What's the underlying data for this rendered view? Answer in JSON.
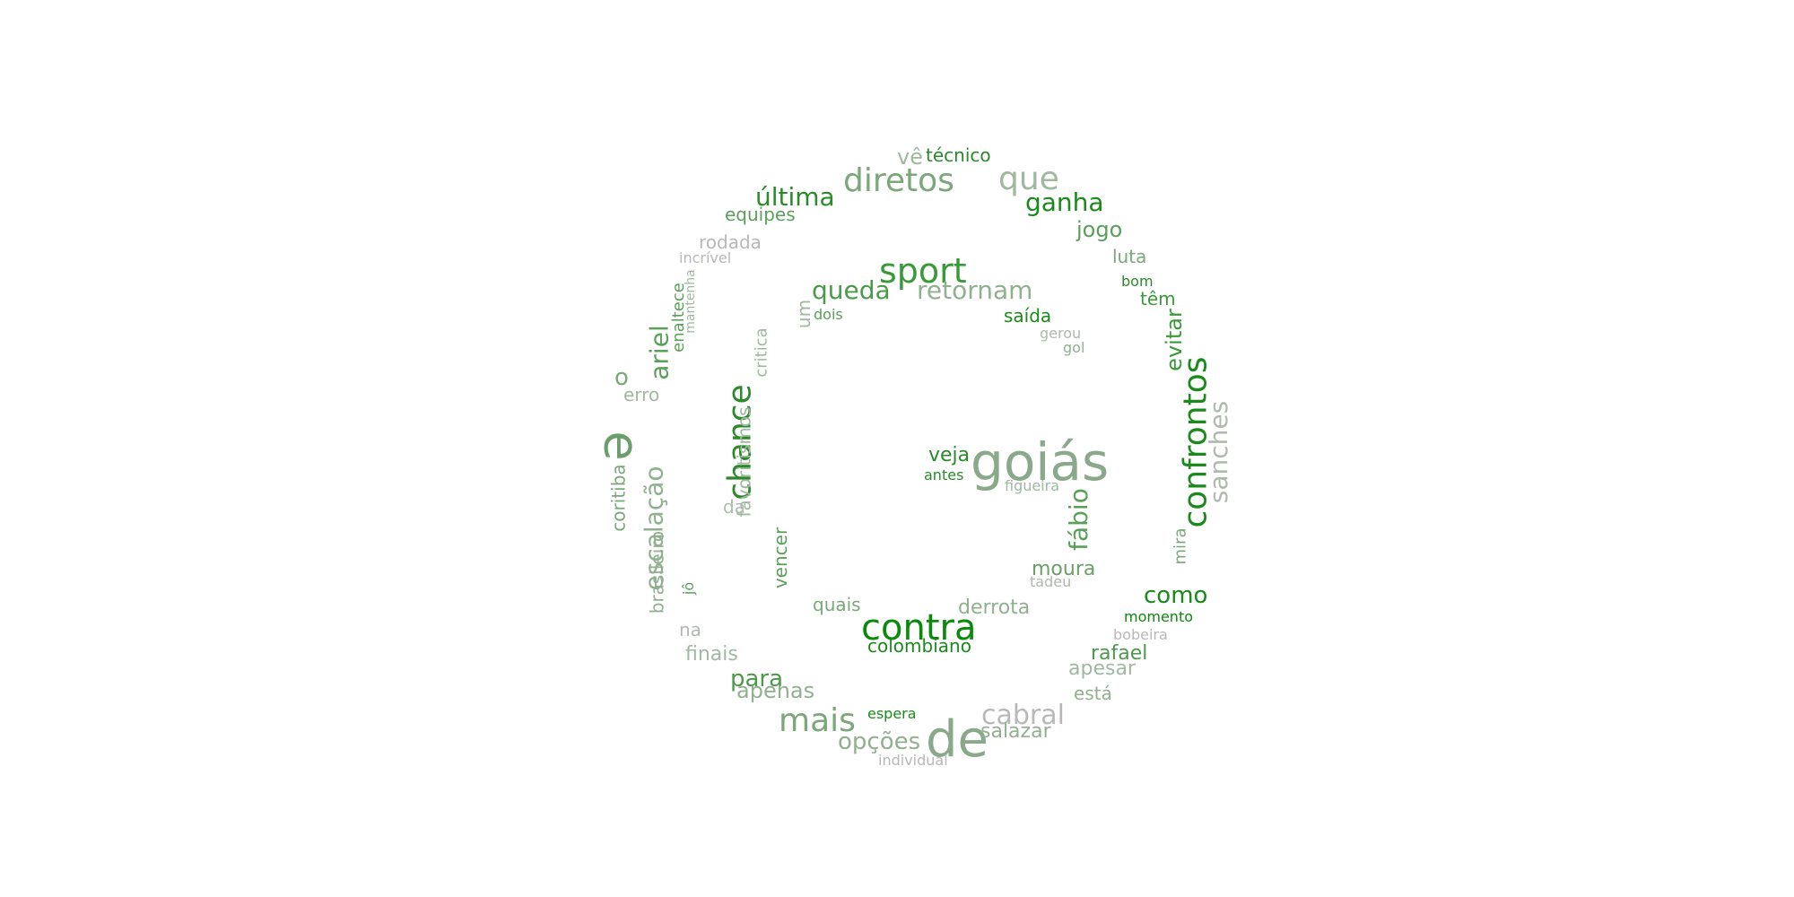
{
  "words": [
    {
      "text": "goiás",
      "color": "#8aa88a"
    },
    {
      "text": "e",
      "color": "#6a9e6a"
    },
    {
      "text": "de",
      "color": "#8aa88a"
    },
    {
      "text": "contra",
      "color": "#0a8a0a"
    },
    {
      "text": "confrontos",
      "color": "#1a8a1a"
    },
    {
      "text": "chance",
      "color": "#2a8a2a"
    },
    {
      "text": "sport",
      "color": "#3a9a3a"
    },
    {
      "text": "diretos",
      "color": "#7aa87a"
    },
    {
      "text": "mais",
      "color": "#7aa87a"
    },
    {
      "text": "que",
      "color": "#a0b8a0"
    },
    {
      "text": "sanches",
      "color": "#b0b8b0"
    },
    {
      "text": "escalação",
      "color": "#90b090"
    },
    {
      "text": "cabral",
      "color": "#b8b8b8"
    },
    {
      "text": "retornam",
      "color": "#90b090"
    },
    {
      "text": "queda",
      "color": "#4a9a4a"
    },
    {
      "text": "ganha",
      "color": "#1a8a1a"
    },
    {
      "text": "última",
      "color": "#2a8a2a"
    },
    {
      "text": "fábio",
      "color": "#5aa05a"
    },
    {
      "text": "ariel",
      "color": "#5aa05a"
    },
    {
      "text": "como",
      "color": "#1a8a1a"
    },
    {
      "text": "para",
      "color": "#4a9a4a"
    },
    {
      "text": "apenas",
      "color": "#90b090"
    },
    {
      "text": "opções",
      "color": "#90b090"
    },
    {
      "text": "jogo",
      "color": "#5aa05a"
    },
    {
      "text": "evitar",
      "color": "#3a9a3a"
    },
    {
      "text": "favoritismos",
      "color": "#a0b8a0"
    },
    {
      "text": "veja",
      "color": "#2a8a2a"
    },
    {
      "text": "moura",
      "color": "#6aa06a"
    },
    {
      "text": "derrota",
      "color": "#90b090"
    },
    {
      "text": "colombiano",
      "color": "#1a8a1a"
    },
    {
      "text": "rafael",
      "color": "#4a9a4a"
    },
    {
      "text": "salazar",
      "color": "#90b090"
    },
    {
      "text": "apesar",
      "color": "#a0b8a0"
    },
    {
      "text": "finais",
      "color": "#a0b8a0"
    },
    {
      "text": "brasileiro",
      "color": "#90b090"
    },
    {
      "text": "coritiba",
      "color": "#7aa87a"
    },
    {
      "text": "critica",
      "color": "#a0b8a0"
    },
    {
      "text": "vencer",
      "color": "#5aa05a"
    },
    {
      "text": "saída",
      "color": "#1a8a1a"
    },
    {
      "text": "equipes",
      "color": "#5aa05a"
    },
    {
      "text": "rodada",
      "color": "#b8b8b8"
    },
    {
      "text": "luta",
      "color": "#7aa87a"
    },
    {
      "text": "têm",
      "color": "#3a9a3a"
    },
    {
      "text": "técnico",
      "color": "#2a8a2a"
    },
    {
      "text": "vê",
      "color": "#a0b8a0"
    },
    {
      "text": "quais",
      "color": "#7aa87a"
    },
    {
      "text": "está",
      "color": "#90b090"
    },
    {
      "text": "o",
      "color": "#7aa87a"
    },
    {
      "text": "um",
      "color": "#a0b8a0"
    },
    {
      "text": "erro",
      "color": "#a0b8a0"
    },
    {
      "text": "enaltece",
      "color": "#5aa05a"
    },
    {
      "text": "da",
      "color": "#b0b8b0"
    },
    {
      "text": "na",
      "color": "#b0b8b0"
    },
    {
      "text": "mira",
      "color": "#7aa87a"
    },
    {
      "text": "momento",
      "color": "#0a8a0a"
    },
    {
      "text": "antes",
      "color": "#2a8a2a"
    },
    {
      "text": "espera",
      "color": "#1a8a1a"
    },
    {
      "text": "dois",
      "color": "#5aa05a"
    },
    {
      "text": "bom",
      "color": "#2a8a2a"
    },
    {
      "text": "figueira",
      "color": "#a0b8a0"
    },
    {
      "text": "gerou",
      "color": "#b0b8b0"
    },
    {
      "text": "gol",
      "color": "#90b090"
    },
    {
      "text": "tadeu",
      "color": "#b0b8b0"
    },
    {
      "text": "bobeira",
      "color": "#b8b8b8"
    },
    {
      "text": "incrível",
      "color": "#b8b8b8"
    },
    {
      "text": "mantenha",
      "color": "#a0b8a0"
    },
    {
      "text": "jô",
      "color": "#5aa05a"
    },
    {
      "text": "individual",
      "color": "#b8b8b8"
    }
  ]
}
